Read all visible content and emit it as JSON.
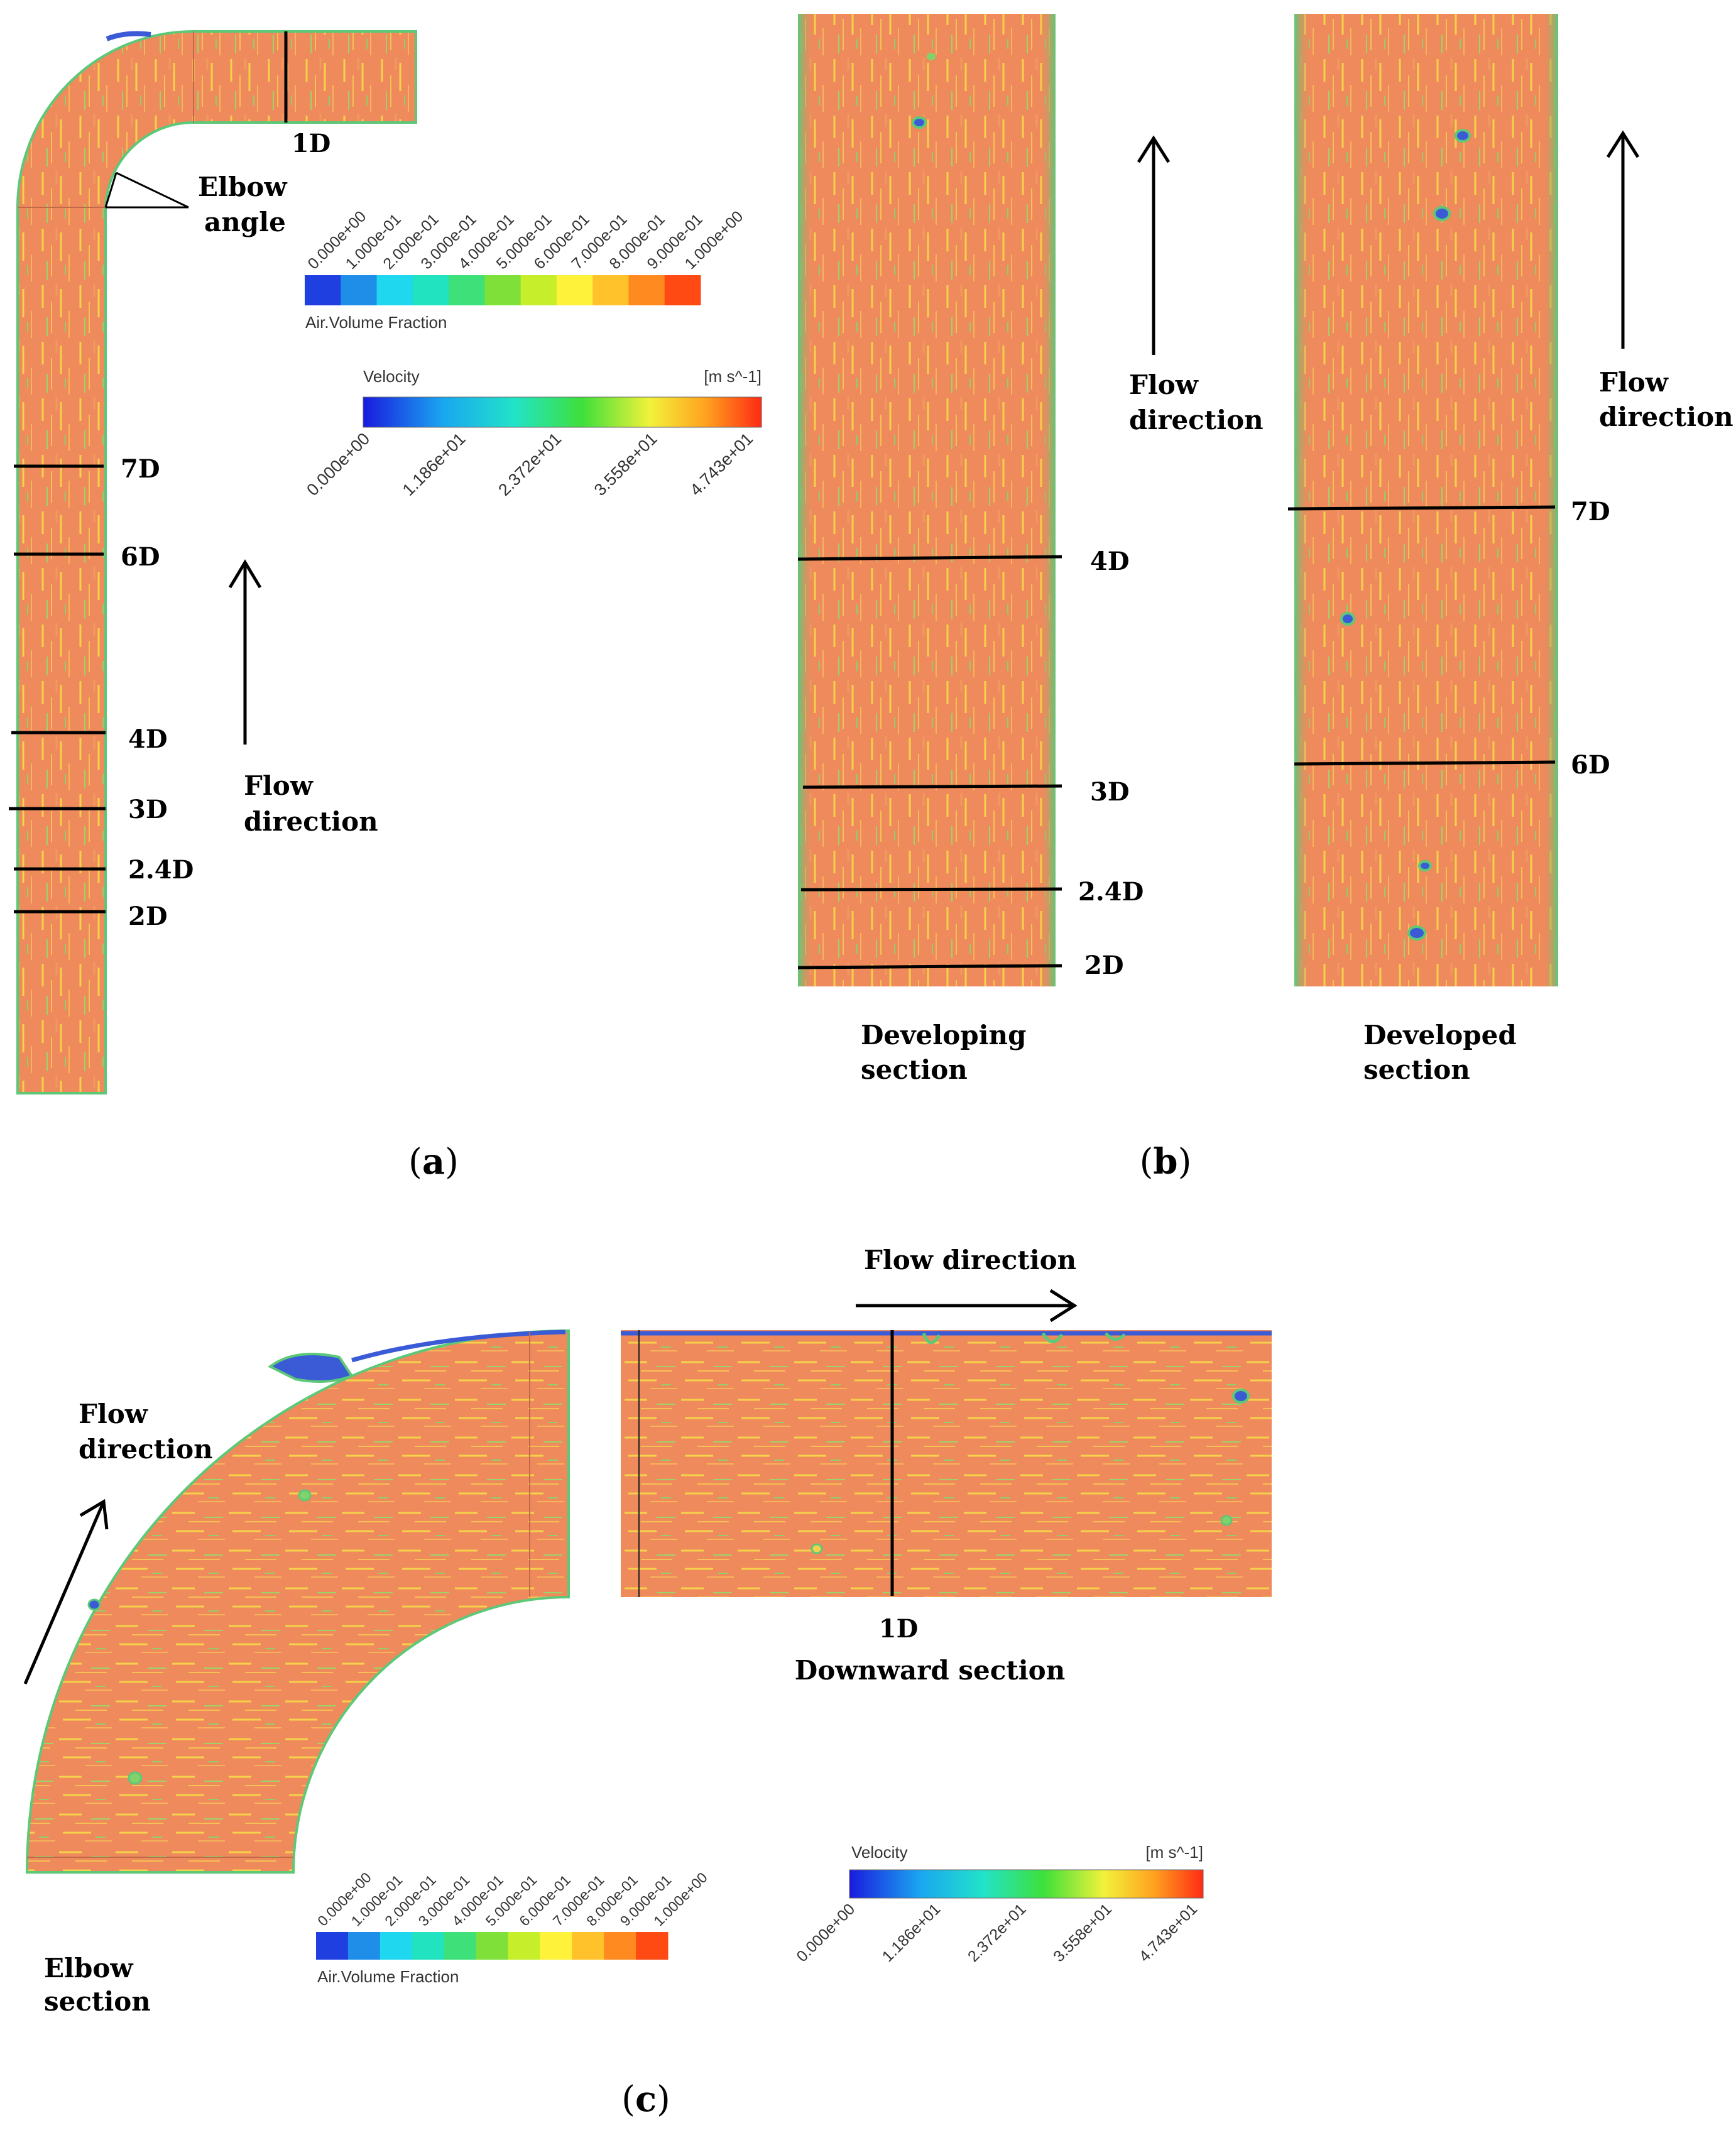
{
  "colors": {
    "fluid": "#ef8a5c",
    "fluid_light": "#f3a06a",
    "streak_yellow": "#f4d24a",
    "streak_green": "#7fd36a",
    "air_pocket": "#3b5bd6",
    "wall_green": "#5cc878"
  },
  "panel_a": {
    "caption_pre": "(",
    "caption_letter": "a",
    "caption_post": ")",
    "elbow_angle_line1": "Elbow",
    "elbow_angle_line2": "angle",
    "flow_direction_line1": "Flow",
    "flow_direction_line2": "direction",
    "stations": [
      "1D",
      "7D",
      "6D",
      "4D",
      "3D",
      "2.4D",
      "2D"
    ],
    "volume_fraction_colorbar": {
      "title": "Air.Volume Fraction",
      "ticks": [
        "0.000e+00",
        "1.000e-01",
        "2.000e-01",
        "3.000e-01",
        "4.000e-01",
        "5.000e-01",
        "6.000e-01",
        "7.000e-01",
        "8.000e-01",
        "9.000e-01",
        "1.000e+00"
      ],
      "bins": [
        "#1f3fe0",
        "#1f8ee8",
        "#1fd8f0",
        "#22e3c0",
        "#3ee07a",
        "#7fe03a",
        "#c6ee2a",
        "#fff23a",
        "#ffc22a",
        "#ff8a1f",
        "#ff4a14"
      ]
    },
    "velocity_colorbar": {
      "title": "Velocity",
      "unit": "[m s^-1]",
      "ticks": [
        "0.000e+00",
        "1.186e+01",
        "2.372e+01",
        "3.558e+01",
        "4.743e+01"
      ]
    }
  },
  "panel_b": {
    "caption_pre": "(",
    "caption_letter": "b",
    "caption_post": ")",
    "developing": {
      "title_line1": "Developing",
      "title_line2": "section",
      "flow_line1": "Flow",
      "flow_line2": "direction",
      "stations": [
        "4D",
        "3D",
        "2.4D",
        "2D"
      ]
    },
    "developed": {
      "title_line1": "Developed",
      "title_line2": "section",
      "flow_line1": "Flow",
      "flow_line2": "direction",
      "stations": [
        "7D",
        "6D"
      ]
    }
  },
  "panel_c": {
    "caption_pre": "(",
    "caption_letter": "c",
    "caption_post": ")",
    "elbow_title_line1": "Elbow",
    "elbow_title_line2": "section",
    "elbow_flow_line1": "Flow",
    "elbow_flow_line2": "direction",
    "downward_flow": "Flow direction",
    "downward_station": "1D",
    "downward_title": "Downward section",
    "volume_fraction_colorbar": {
      "title": "Air.Volume Fraction",
      "ticks": [
        "0.000e+00",
        "1.000e-01",
        "2.000e-01",
        "3.000e-01",
        "4.000e-01",
        "5.000e-01",
        "6.000e-01",
        "7.000e-01",
        "8.000e-01",
        "9.000e-01",
        "1.000e+00"
      ]
    },
    "velocity_colorbar": {
      "title": "Velocity",
      "unit": "[m s^-1]",
      "ticks": [
        "0.000e+00",
        "1.186e+01",
        "2.372e+01",
        "3.558e+01",
        "4.743e+01"
      ]
    }
  }
}
